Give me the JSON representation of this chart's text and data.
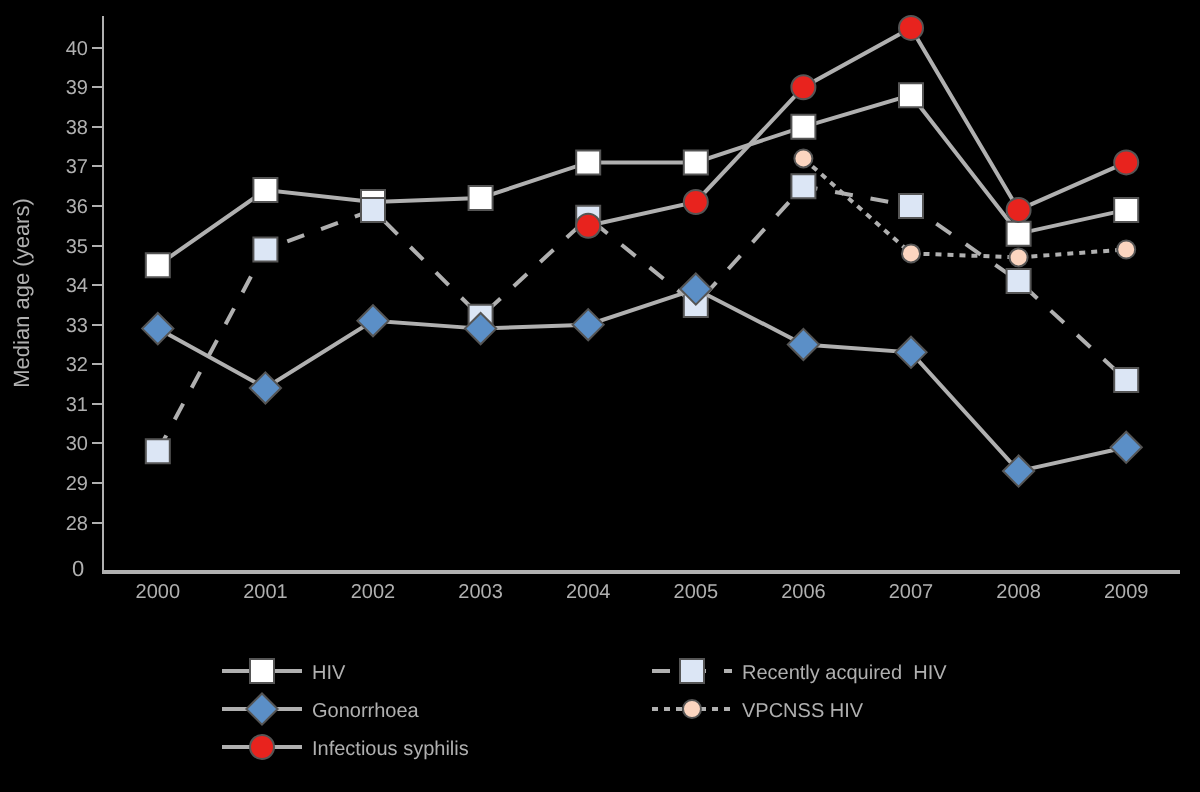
{
  "chart_data": {
    "type": "line",
    "ylabel": "Median age (years)",
    "categories": [
      "2000",
      "2001",
      "2002",
      "2003",
      "2004",
      "2005",
      "2006",
      "2007",
      "2008",
      "2009"
    ],
    "ylim": [
      26.8,
      40.8
    ],
    "yticks": [
      28,
      29,
      30,
      31,
      32,
      33,
      34,
      35,
      36,
      37,
      38,
      39,
      40
    ],
    "annotations": [
      "0"
    ],
    "grid": false,
    "legend": "bottom",
    "series": [
      {
        "name": "HIV",
        "color": "#ffffff",
        "marker": "square",
        "line_style": "solid",
        "values": [
          34.5,
          36.4,
          36.1,
          36.2,
          37.1,
          37.1,
          38.0,
          38.8,
          35.3,
          35.9
        ]
      },
      {
        "name": "Recently acquired  HIV",
        "color": "#dce6f5",
        "marker": "square",
        "line_style": "dashed",
        "values": [
          29.8,
          34.9,
          35.9,
          33.2,
          35.7,
          33.5,
          36.5,
          36.0,
          34.1,
          31.6
        ]
      },
      {
        "name": "Gonorrhoea",
        "color": "#5b8fc7",
        "marker": "diamond",
        "line_style": "solid",
        "values": [
          32.9,
          31.4,
          33.1,
          32.9,
          33.0,
          33.9,
          32.5,
          32.3,
          29.3,
          29.9
        ]
      },
      {
        "name": "VPCNSS HIV",
        "color": "#fbd5c0",
        "marker": "circle",
        "line_style": "dotted",
        "values": [
          null,
          null,
          null,
          null,
          null,
          null,
          37.2,
          34.8,
          34.7,
          34.9
        ]
      },
      {
        "name": "Infectious syphilis",
        "color": "#e8231e",
        "marker": "circle",
        "line_style": "solid",
        "values": [
          null,
          null,
          null,
          null,
          35.5,
          36.1,
          39.0,
          40.5,
          35.9,
          37.1
        ]
      }
    ]
  }
}
